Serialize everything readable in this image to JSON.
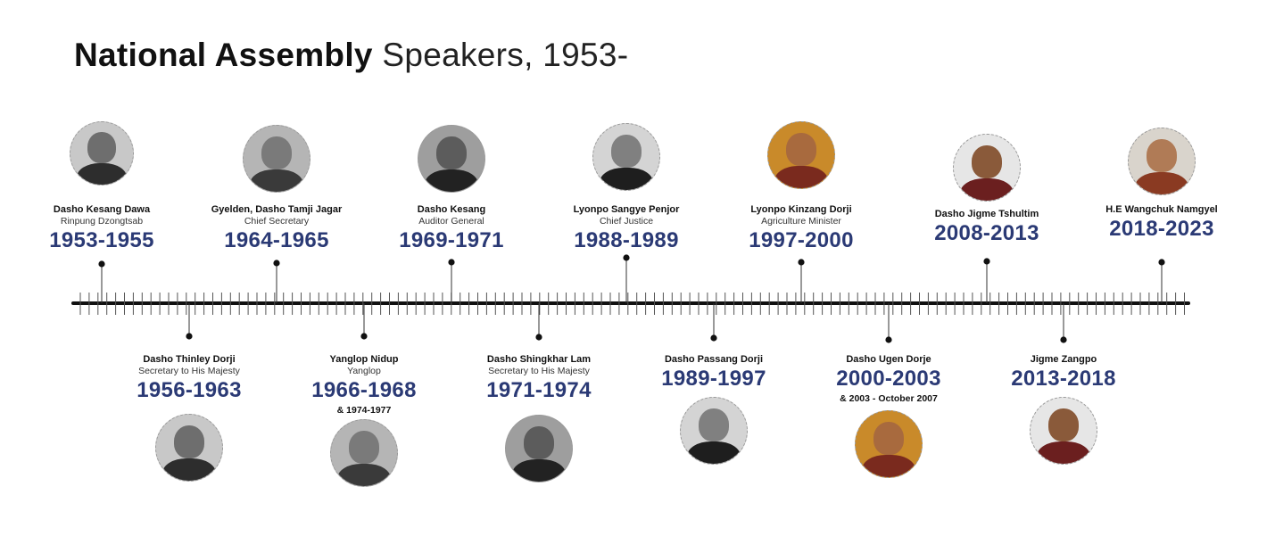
{
  "title": {
    "bold": "National Assembly",
    "light": "Speakers, 1953-"
  },
  "timeline": {
    "above": [
      {
        "name": "Dasho Kesang Dawa",
        "role": "Rinpung Dzongtsab",
        "years": "1953-1955",
        "portrait_style": "bw"
      },
      {
        "name": "Gyelden, Dasho Tamji Jagar",
        "role": "Chief Secretary",
        "years": "1964-1965",
        "portrait_style": "bw"
      },
      {
        "name": "Dasho Kesang",
        "role": "Auditor General",
        "years": "1969-1971",
        "portrait_style": "bw"
      },
      {
        "name": "Lyonpo Sangye Penjor",
        "role": "Chief Justice",
        "years": "1988-1989",
        "portrait_style": "bw"
      },
      {
        "name": "Lyonpo Kinzang Dorji",
        "role": "Agriculture Minister",
        "years": "1997-2000",
        "portrait_style": "color"
      },
      {
        "name": "Dasho Jigme Tshultim",
        "role": "",
        "years": "2008-2013",
        "portrait_style": "color"
      },
      {
        "name": "H.E Wangchuk Namgyel",
        "role": "",
        "years": "2018-2023",
        "portrait_style": "color"
      }
    ],
    "below": [
      {
        "name": "Dasho Thinley Dorji",
        "role": "Secretary to His Majesty",
        "years": "1956-1963",
        "extra": "",
        "portrait_style": "bw"
      },
      {
        "name": "Yanglop Nidup",
        "role": "Yanglop",
        "years": "1966-1968",
        "extra": "& 1974-1977",
        "portrait_style": "bw"
      },
      {
        "name": "Dasho Shingkhar Lam",
        "role": "Secretary to His Majesty",
        "years": "1971-1974",
        "extra": "",
        "portrait_style": "bw"
      },
      {
        "name": "Dasho Passang Dorji",
        "role": "",
        "years": "1989-1997",
        "extra": "",
        "portrait_style": "bw"
      },
      {
        "name": "Dasho Ugen Dorje",
        "role": "",
        "years": "2000-2003",
        "extra": "& 2003 - October 2007",
        "portrait_style": "color"
      },
      {
        "name": "Jigme Zangpo",
        "role": "",
        "years": "2013-2018",
        "extra": "",
        "portrait_style": "color"
      }
    ]
  },
  "colors": {
    "years_text": "#2b3a75",
    "axis_line": "#111111",
    "tick_marks": "#555555",
    "portrait_border": "#999999"
  }
}
